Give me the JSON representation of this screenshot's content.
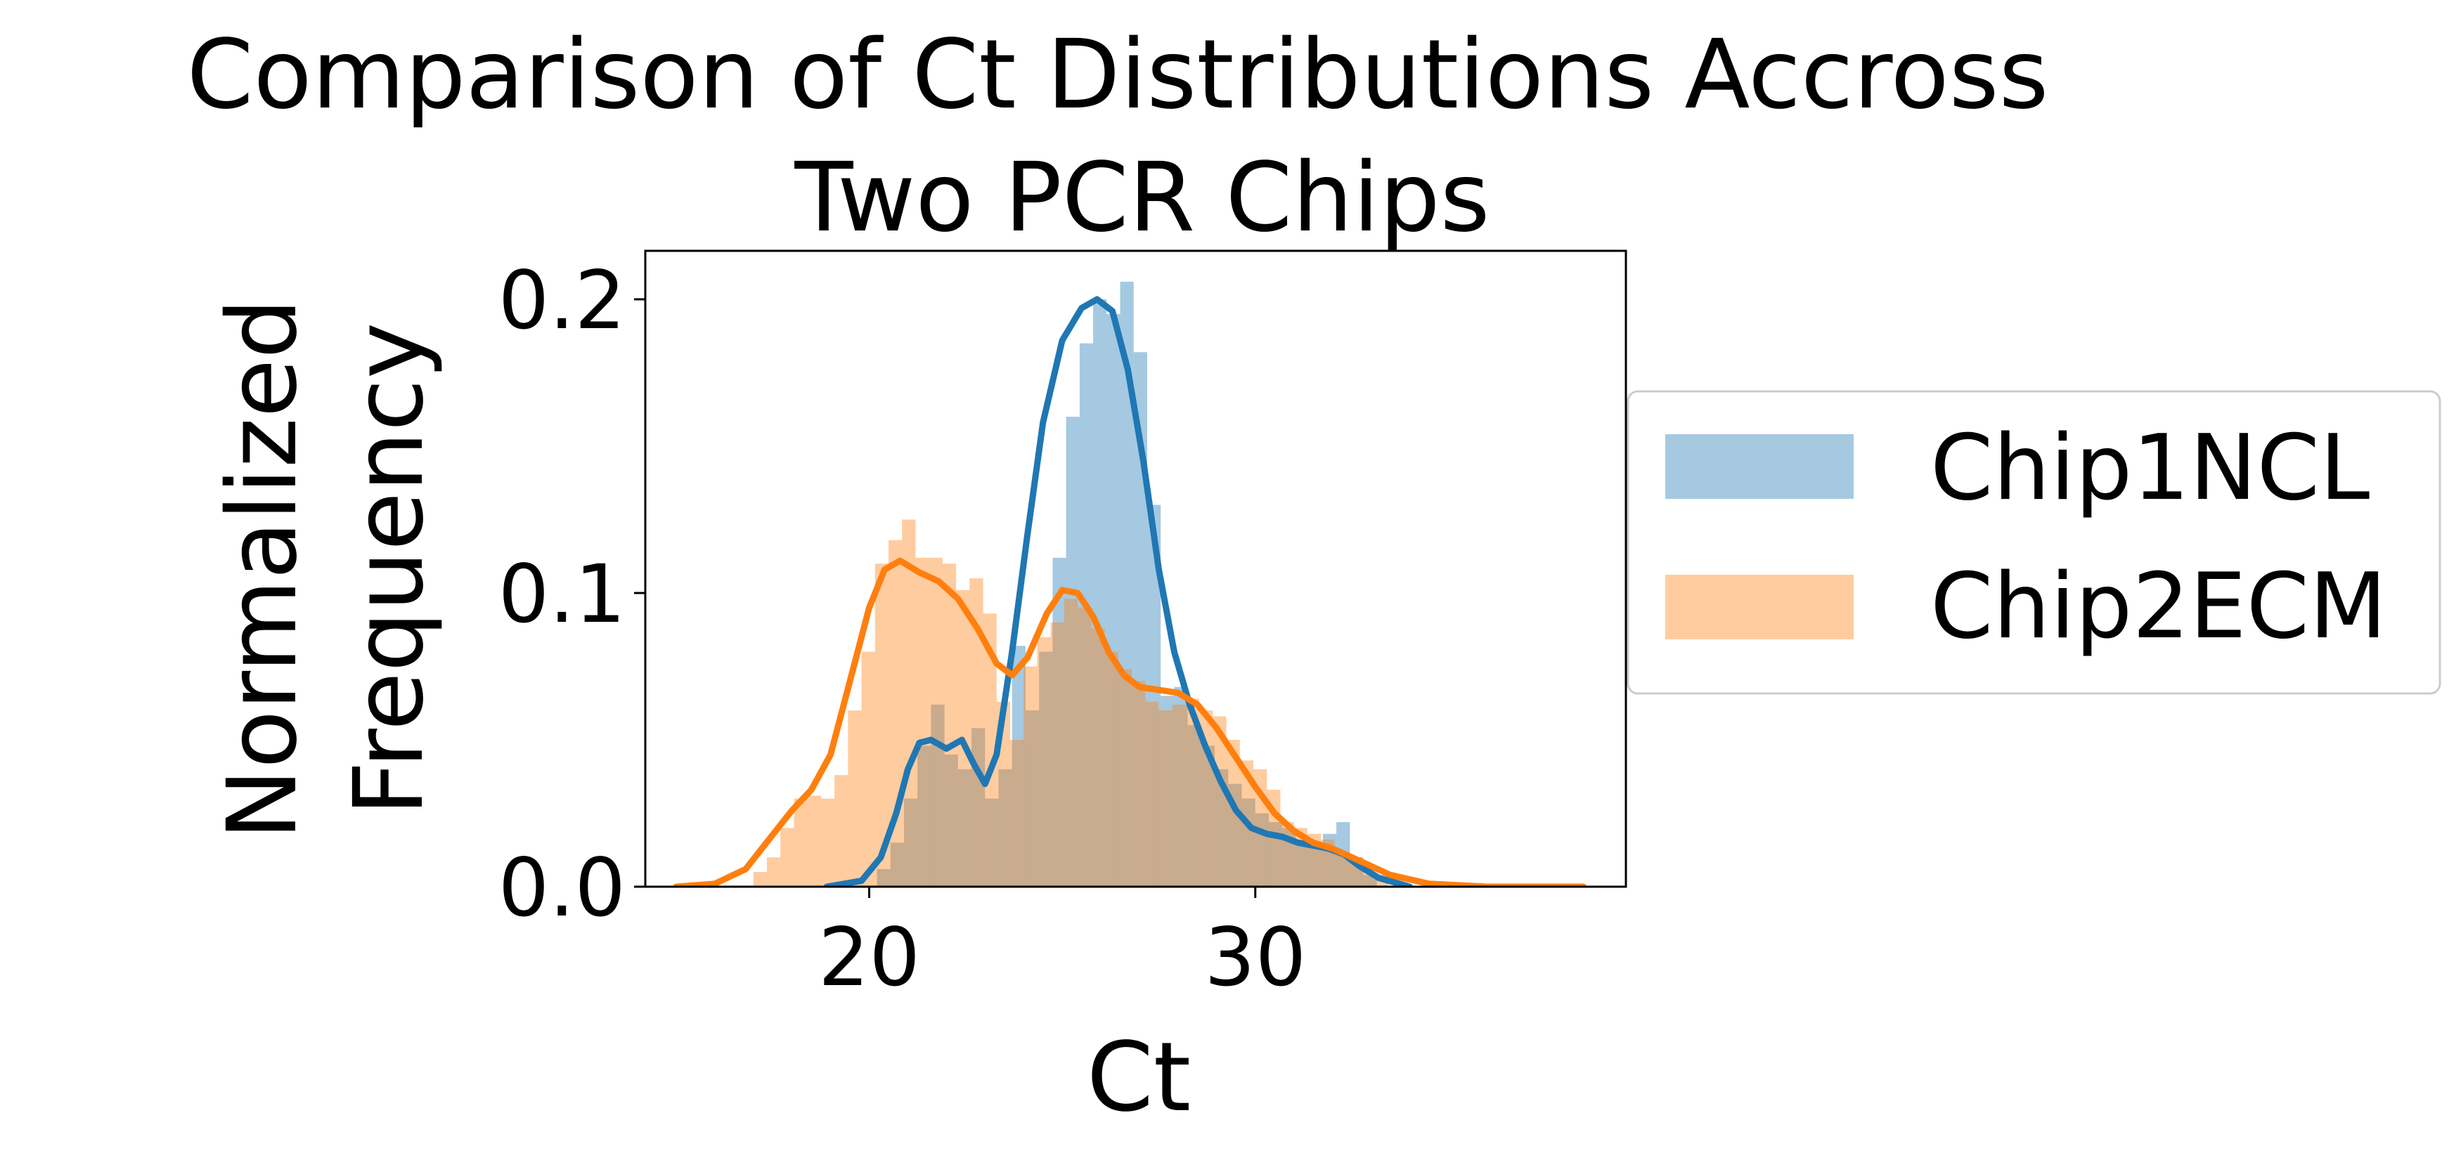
{
  "chart_data": {
    "type": "histogram",
    "title_lines": [
      "Comparison of Ct Distributions Accross",
      "Two PCR Chips"
    ],
    "xlabel": "Ct",
    "ylabel_lines": [
      "Normalized",
      "Frequency"
    ],
    "xlim": [
      14.2,
      39.6
    ],
    "ylim": [
      0,
      0.2165
    ],
    "x_ticks": [
      20,
      30
    ],
    "x_tick_labels": [
      "20",
      "30"
    ],
    "y_ticks": [
      0.0,
      0.1,
      0.2
    ],
    "y_tick_labels": [
      "0.0",
      "0.1",
      "0.2"
    ],
    "grid": false,
    "legend_position": "outside-right",
    "bin_width": 0.35,
    "series": [
      {
        "name": "Chip1NCL",
        "color": "#1f77b4",
        "fill_color": "#a6c8e2",
        "hist": [
          [
            19.0,
            0.0
          ],
          [
            20.2,
            0.006
          ],
          [
            20.55,
            0.015
          ],
          [
            20.9,
            0.03
          ],
          [
            21.25,
            0.048
          ],
          [
            21.6,
            0.062
          ],
          [
            21.95,
            0.045
          ],
          [
            22.3,
            0.04
          ],
          [
            22.65,
            0.054
          ],
          [
            23.0,
            0.03
          ],
          [
            23.35,
            0.04
          ],
          [
            23.7,
            0.082
          ],
          [
            24.05,
            0.06
          ],
          [
            24.4,
            0.08
          ],
          [
            24.75,
            0.112
          ],
          [
            25.1,
            0.16
          ],
          [
            25.45,
            0.185
          ],
          [
            25.8,
            0.2
          ],
          [
            26.15,
            0.195
          ],
          [
            26.5,
            0.206
          ],
          [
            26.85,
            0.182
          ],
          [
            27.2,
            0.13
          ],
          [
            27.55,
            0.065
          ],
          [
            27.9,
            0.068
          ],
          [
            28.25,
            0.055
          ],
          [
            28.6,
            0.048
          ],
          [
            28.95,
            0.04
          ],
          [
            29.3,
            0.035
          ],
          [
            29.65,
            0.03
          ],
          [
            30.0,
            0.025
          ],
          [
            30.35,
            0.022
          ],
          [
            30.7,
            0.02
          ],
          [
            31.05,
            0.016
          ],
          [
            31.4,
            0.014
          ],
          [
            31.75,
            0.018
          ],
          [
            32.1,
            0.022
          ],
          [
            32.45,
            0.01
          ],
          [
            32.8,
            0.004
          ]
        ],
        "kde": [
          [
            18.9,
            0.0
          ],
          [
            19.8,
            0.002
          ],
          [
            20.3,
            0.01
          ],
          [
            20.7,
            0.025
          ],
          [
            21.0,
            0.04
          ],
          [
            21.3,
            0.049
          ],
          [
            21.6,
            0.05
          ],
          [
            22.0,
            0.047
          ],
          [
            22.4,
            0.05
          ],
          [
            22.7,
            0.042
          ],
          [
            23.0,
            0.035
          ],
          [
            23.3,
            0.045
          ],
          [
            23.7,
            0.08
          ],
          [
            24.1,
            0.12
          ],
          [
            24.5,
            0.158
          ],
          [
            25.0,
            0.186
          ],
          [
            25.5,
            0.197
          ],
          [
            25.9,
            0.2
          ],
          [
            26.3,
            0.196
          ],
          [
            26.7,
            0.176
          ],
          [
            27.1,
            0.145
          ],
          [
            27.5,
            0.108
          ],
          [
            27.9,
            0.08
          ],
          [
            28.3,
            0.062
          ],
          [
            28.7,
            0.048
          ],
          [
            29.1,
            0.036
          ],
          [
            29.5,
            0.026
          ],
          [
            29.9,
            0.02
          ],
          [
            30.3,
            0.018
          ],
          [
            30.7,
            0.017
          ],
          [
            31.1,
            0.015
          ],
          [
            31.5,
            0.014
          ],
          [
            31.9,
            0.013
          ],
          [
            32.3,
            0.011
          ],
          [
            32.7,
            0.007
          ],
          [
            33.2,
            0.003
          ],
          [
            34.0,
            0.0
          ]
        ]
      },
      {
        "name": "Chip2ECM",
        "color": "#ff7f0e",
        "fill_color": "#ffc999",
        "hist": [
          [
            17.0,
            0.005
          ],
          [
            17.35,
            0.01
          ],
          [
            17.7,
            0.02
          ],
          [
            18.05,
            0.03
          ],
          [
            18.4,
            0.031
          ],
          [
            18.75,
            0.03
          ],
          [
            19.1,
            0.038
          ],
          [
            19.45,
            0.06
          ],
          [
            19.8,
            0.08
          ],
          [
            20.15,
            0.11
          ],
          [
            20.5,
            0.118
          ],
          [
            20.85,
            0.125
          ],
          [
            21.2,
            0.112
          ],
          [
            21.55,
            0.112
          ],
          [
            21.9,
            0.11
          ],
          [
            22.25,
            0.101
          ],
          [
            22.6,
            0.105
          ],
          [
            22.95,
            0.093
          ],
          [
            23.3,
            0.063
          ],
          [
            23.65,
            0.05
          ],
          [
            24.0,
            0.075
          ],
          [
            24.35,
            0.085
          ],
          [
            24.7,
            0.09
          ],
          [
            25.05,
            0.098
          ],
          [
            25.4,
            0.095
          ],
          [
            25.75,
            0.088
          ],
          [
            26.1,
            0.08
          ],
          [
            26.45,
            0.074
          ],
          [
            26.8,
            0.07
          ],
          [
            27.15,
            0.063
          ],
          [
            27.5,
            0.06
          ],
          [
            27.85,
            0.062
          ],
          [
            28.2,
            0.064
          ],
          [
            28.55,
            0.06
          ],
          [
            28.9,
            0.058
          ],
          [
            29.25,
            0.05
          ],
          [
            29.6,
            0.043
          ],
          [
            29.95,
            0.04
          ],
          [
            30.3,
            0.033
          ],
          [
            30.65,
            0.022
          ],
          [
            31.0,
            0.02
          ],
          [
            31.35,
            0.018
          ],
          [
            31.7,
            0.016
          ],
          [
            32.05,
            0.012
          ],
          [
            32.4,
            0.01
          ],
          [
            32.75,
            0.006
          ],
          [
            33.1,
            0.004
          ]
        ],
        "kde": [
          [
            15.0,
            0.0
          ],
          [
            16.0,
            0.001
          ],
          [
            16.8,
            0.006
          ],
          [
            17.4,
            0.016
          ],
          [
            18.0,
            0.026
          ],
          [
            18.5,
            0.033
          ],
          [
            19.0,
            0.045
          ],
          [
            19.5,
            0.07
          ],
          [
            20.0,
            0.095
          ],
          [
            20.4,
            0.108
          ],
          [
            20.8,
            0.111
          ],
          [
            21.3,
            0.107
          ],
          [
            21.8,
            0.104
          ],
          [
            22.3,
            0.098
          ],
          [
            22.8,
            0.088
          ],
          [
            23.3,
            0.076
          ],
          [
            23.7,
            0.072
          ],
          [
            24.1,
            0.078
          ],
          [
            24.6,
            0.093
          ],
          [
            25.0,
            0.101
          ],
          [
            25.4,
            0.1
          ],
          [
            25.8,
            0.092
          ],
          [
            26.2,
            0.08
          ],
          [
            26.6,
            0.072
          ],
          [
            27.0,
            0.068
          ],
          [
            27.5,
            0.067
          ],
          [
            28.0,
            0.066
          ],
          [
            28.5,
            0.062
          ],
          [
            29.0,
            0.054
          ],
          [
            29.5,
            0.044
          ],
          [
            30.0,
            0.034
          ],
          [
            30.5,
            0.025
          ],
          [
            31.0,
            0.019
          ],
          [
            31.5,
            0.015
          ],
          [
            32.0,
            0.013
          ],
          [
            32.5,
            0.01
          ],
          [
            33.0,
            0.007
          ],
          [
            33.5,
            0.004
          ],
          [
            34.5,
            0.001
          ],
          [
            36.0,
            0.0
          ],
          [
            38.5,
            0.0
          ]
        ]
      }
    ]
  }
}
